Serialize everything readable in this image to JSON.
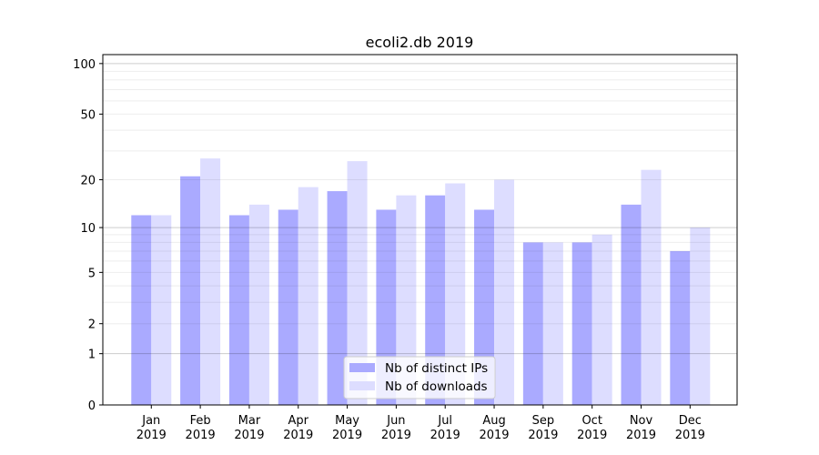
{
  "chart_data": {
    "type": "bar",
    "title": "ecoli2.db 2019",
    "xlabel": "",
    "ylabel": "",
    "yscale": "log10(1+y)",
    "ylim": [
      0,
      113
    ],
    "yticks": [
      0,
      1,
      2,
      5,
      10,
      20,
      50,
      100
    ],
    "grid": true,
    "legend_placement": "bottom-center",
    "categories": [
      "Jan\n2019",
      "Feb\n2019",
      "Mar\n2019",
      "Apr\n2019",
      "May\n2019",
      "Jun\n2019",
      "Jul\n2019",
      "Aug\n2019",
      "Sep\n2019",
      "Oct\n2019",
      "Nov\n2019",
      "Dec\n2019"
    ],
    "series": [
      {
        "name": "Nb of distinct IPs",
        "color": "#aaaaff",
        "values": [
          12,
          21,
          12,
          13,
          17,
          13,
          16,
          13,
          8,
          8,
          14,
          7
        ]
      },
      {
        "name": "Nb of downloads",
        "color": "#ddddff",
        "values": [
          12,
          27,
          14,
          18,
          26,
          16,
          19,
          20,
          8,
          9,
          23,
          10
        ]
      }
    ]
  }
}
